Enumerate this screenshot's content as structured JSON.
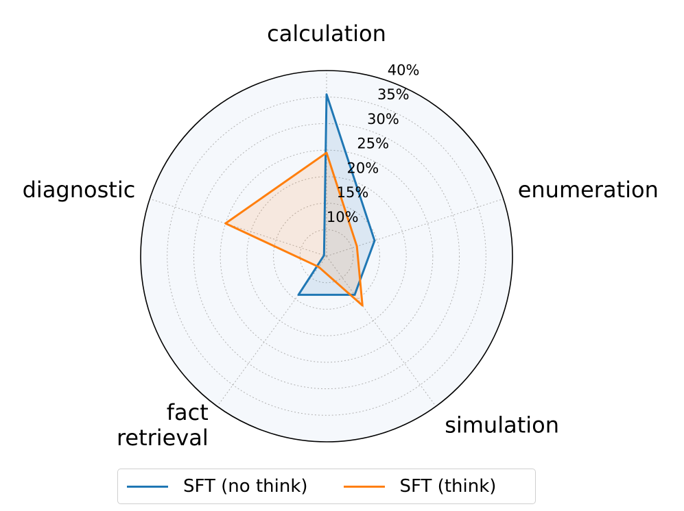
{
  "chart_data": {
    "type": "radar",
    "categories": [
      "calculation",
      "enumeration",
      "simulation",
      "fact retrieval",
      "diagnostic"
    ],
    "category_lines": [
      [
        "calculation"
      ],
      [
        "enumeration"
      ],
      [
        "simulation"
      ],
      [
        "fact",
        "retrieval"
      ],
      [
        "diagnostic"
      ]
    ],
    "radial_ticks": [
      10,
      15,
      20,
      25,
      30,
      35,
      40
    ],
    "radial_tick_labels": [
      "10%",
      "15%",
      "20%",
      "25%",
      "30%",
      "35%",
      "40%"
    ],
    "rlim": [
      5,
      40
    ],
    "grid": true,
    "legend_position": "bottom",
    "series": [
      {
        "name": "SFT (no think)",
        "color": "#1f77b4",
        "values": [
          35.5,
          14.5,
          14.0,
          14.0,
          5.5
        ]
      },
      {
        "name": "SFT (think)",
        "color": "#ff7f0e",
        "values": [
          24.5,
          11.0,
          16.5,
          7.5,
          25.0
        ]
      }
    ]
  },
  "legend": {
    "items": [
      {
        "label": "SFT (no think)",
        "color": "#1f77b4"
      },
      {
        "label": "SFT (think)",
        "color": "#ff7f0e"
      }
    ]
  }
}
